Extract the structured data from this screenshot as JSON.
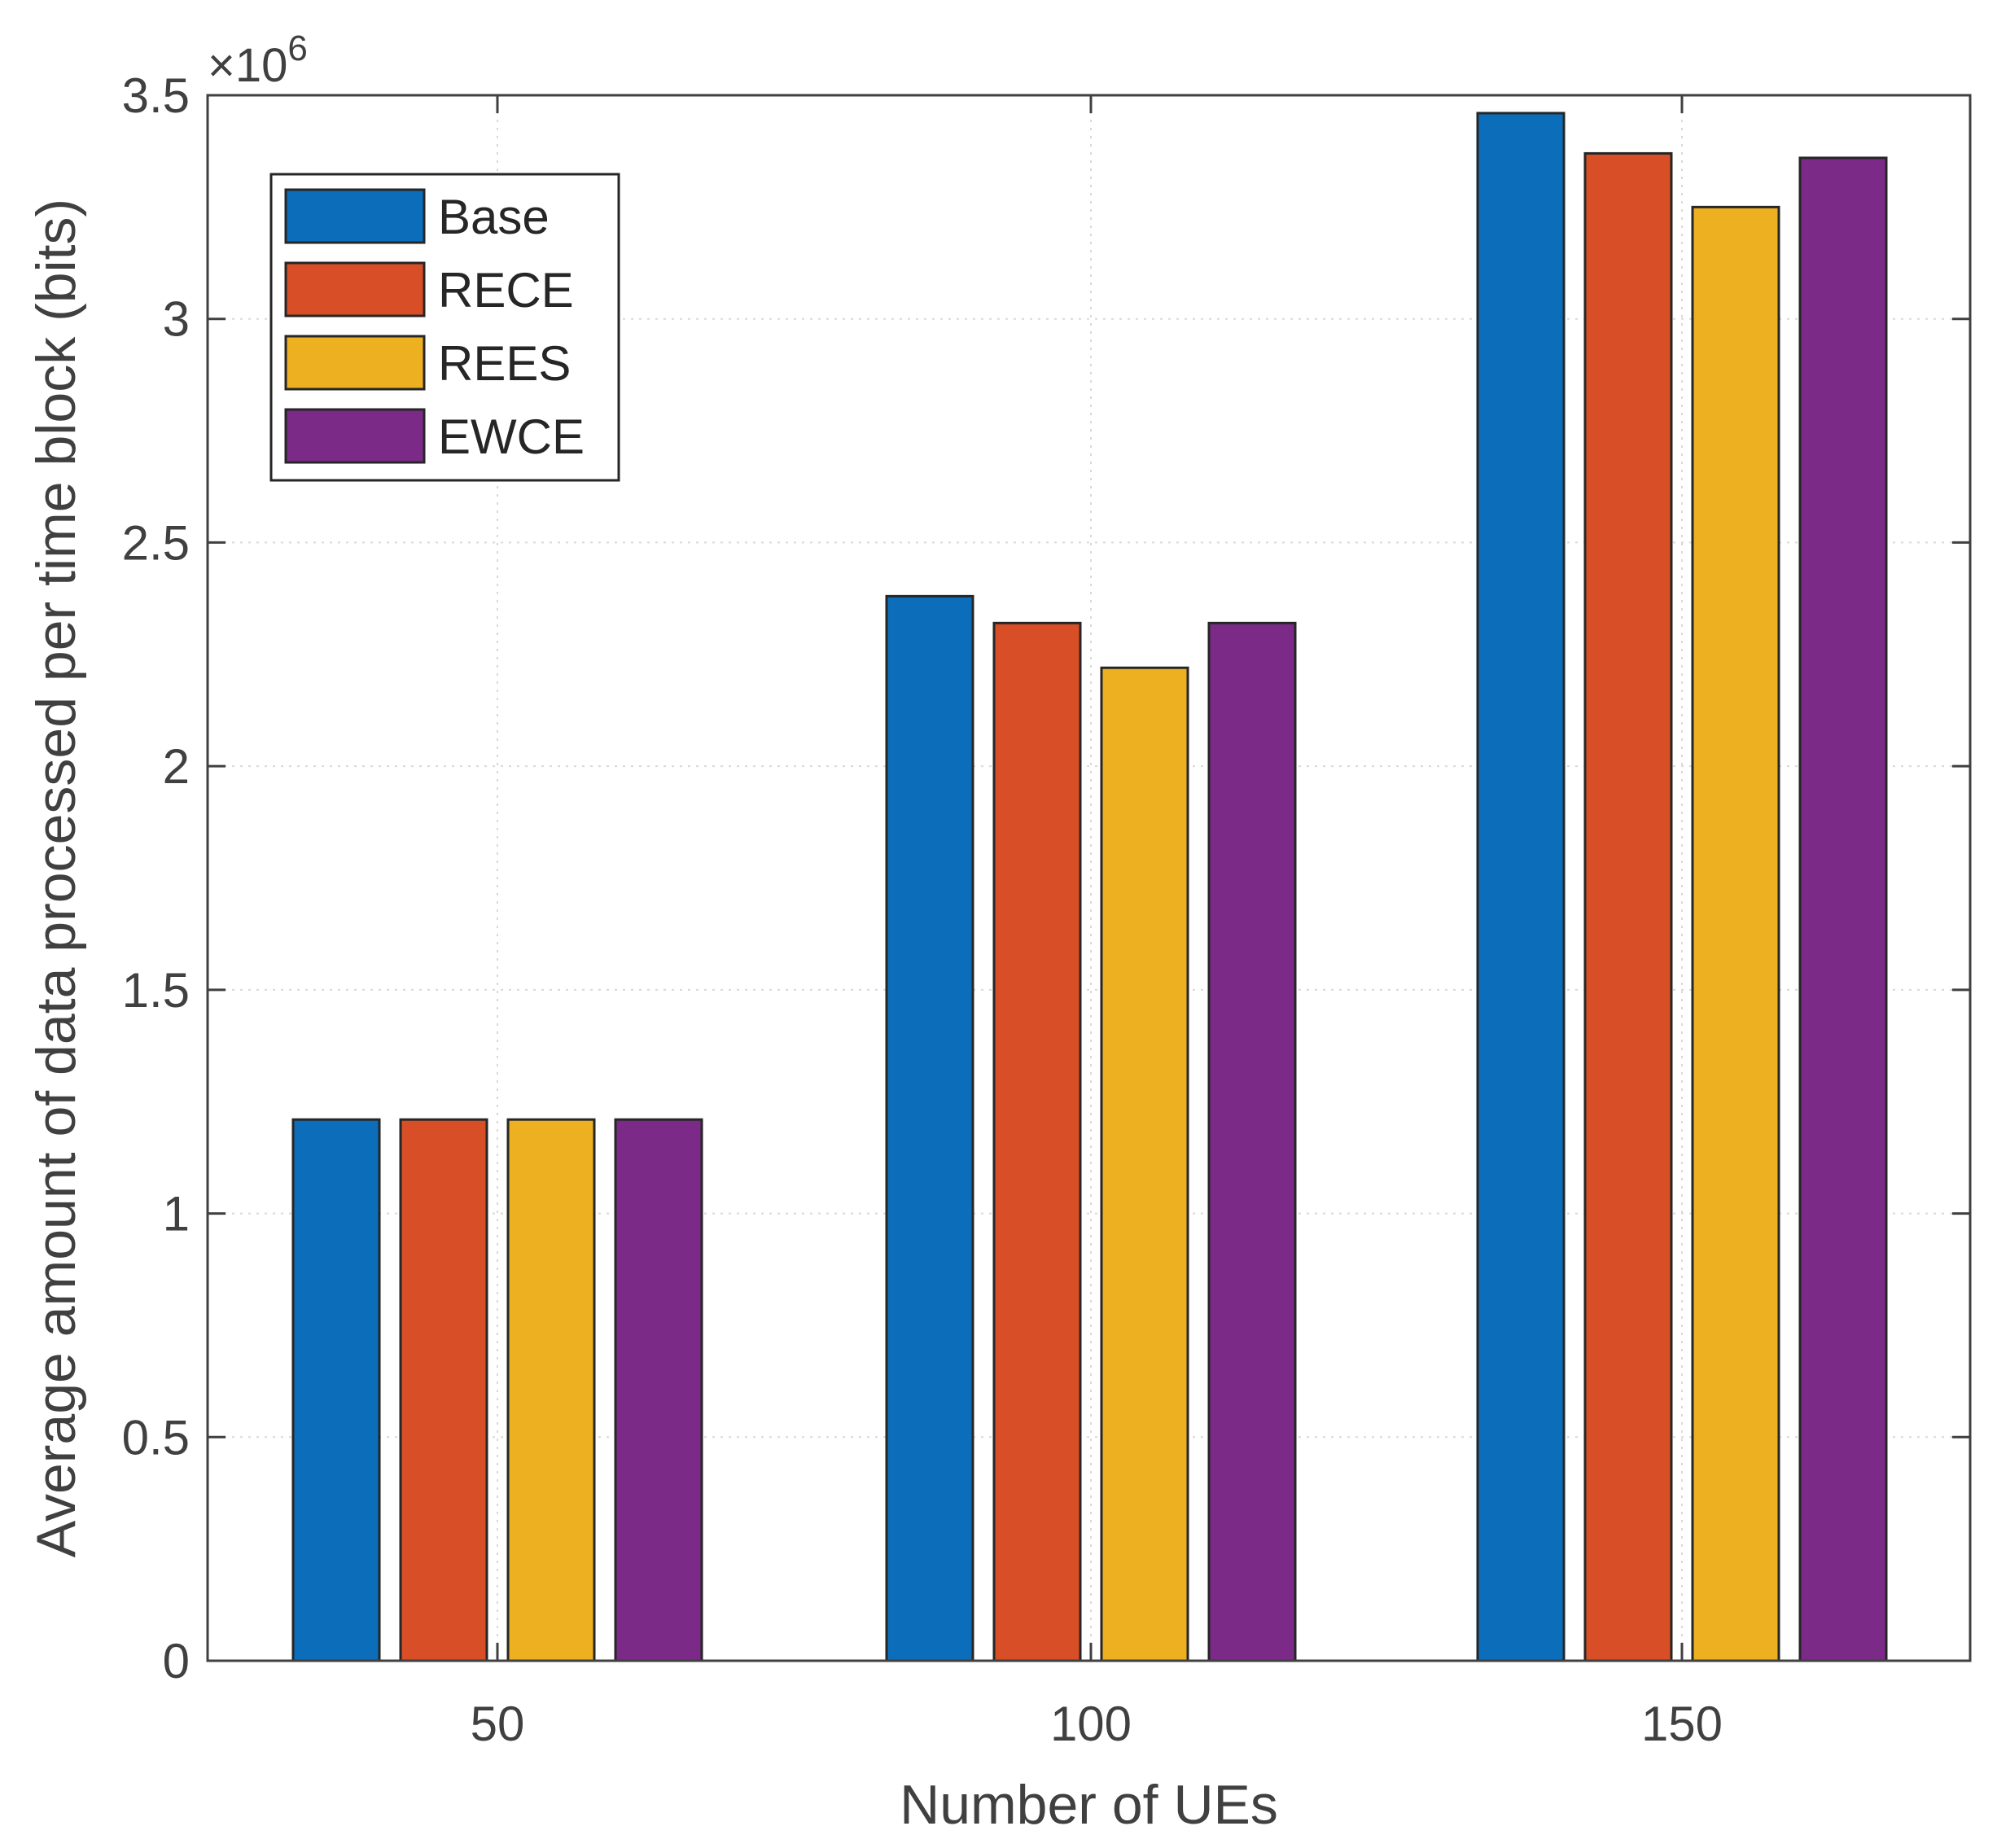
{
  "chart_data": {
    "type": "bar",
    "title": "",
    "xlabel": "Number of UEs",
    "ylabel": "Average amount of data processed per time block (bits)",
    "y_exponent_label": "×10",
    "y_exponent_power": "6",
    "categories": [
      "50",
      "100",
      "150"
    ],
    "ylim": [
      0,
      3.5
    ],
    "yticks": [
      0,
      0.5,
      1,
      1.5,
      2,
      2.5,
      3,
      3.5
    ],
    "ytick_labels": [
      "0",
      "0.5",
      "1",
      "1.5",
      "2",
      "2.5",
      "3",
      "3.5"
    ],
    "grid": true,
    "legend_position": "top-left",
    "series": [
      {
        "name": "Base",
        "color": "#0c6eba",
        "values": [
          1.21,
          2.38,
          3.46
        ]
      },
      {
        "name": "RECE",
        "color": "#d84e26",
        "values": [
          1.21,
          2.32,
          3.37
        ]
      },
      {
        "name": "REES",
        "color": "#ecb021",
        "values": [
          1.21,
          2.22,
          3.25
        ]
      },
      {
        "name": "EWCE",
        "color": "#7b2a88",
        "values": [
          1.21,
          2.32,
          3.36
        ]
      }
    ]
  }
}
